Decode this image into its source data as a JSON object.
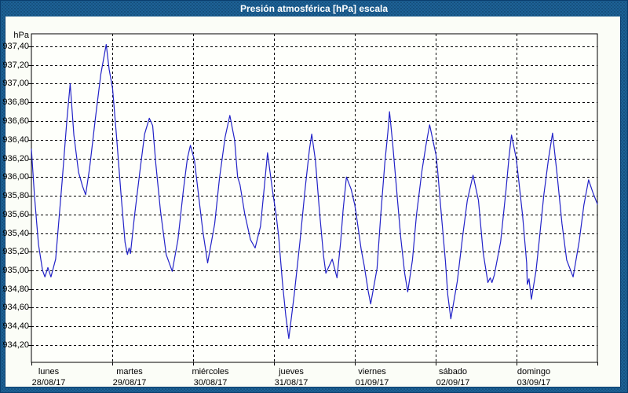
{
  "window": {
    "title": "Presión atmosférica [hPa] escala"
  },
  "colors": {
    "title_bar": "#1D6296",
    "window_border": "#0A3E6E",
    "panel_bg": "#FBFDF7",
    "plot_bg": "#FEFFFB",
    "grid": "#000000",
    "axis_text": "#000000",
    "line": "#2222C8"
  },
  "y_axis": {
    "unit_label": "hPa",
    "step": 0.2,
    "min": 934.2,
    "max": 937.4,
    "tick_labels": [
      "937,40",
      "937,20",
      "937,00",
      "936,80",
      "936,60",
      "936,40",
      "936,20",
      "936,00",
      "935,80",
      "935,60",
      "935,40",
      "935,20",
      "935,00",
      "934,80",
      "934,60",
      "934,40",
      "934,20"
    ]
  },
  "x_axis": {
    "days": [
      {
        "name": "lunes",
        "date": "28/08/17"
      },
      {
        "name": "martes",
        "date": "29/08/17"
      },
      {
        "name": "miércoles",
        "date": "30/08/17"
      },
      {
        "name": "jueves",
        "date": "31/08/17"
      },
      {
        "name": "viernes",
        "date": "01/09/17"
      },
      {
        "name": "sábado",
        "date": "02/09/17"
      },
      {
        "name": "domingo",
        "date": "03/09/17"
      }
    ]
  },
  "chart_data": {
    "type": "line",
    "title": "Presión atmosférica [hPa] escala",
    "xlabel": "",
    "ylabel": "hPa",
    "x_unit": "hours since lunes 28/08/17 00:00",
    "x_range": [
      0,
      168
    ],
    "ylim": [
      934.2,
      937.4
    ],
    "grid": "dashed",
    "legend": "none",
    "series": [
      {
        "name": "Presión atmosférica [hPa]",
        "color": "#2222C8",
        "points": [
          [
            0,
            936.3
          ],
          [
            0.9,
            935.8
          ],
          [
            2.1,
            935.28
          ],
          [
            3.3,
            935.0
          ],
          [
            4.0,
            934.93
          ],
          [
            4.9,
            935.03
          ],
          [
            5.8,
            934.93
          ],
          [
            7.2,
            935.12
          ],
          [
            9.1,
            935.95
          ],
          [
            10.5,
            936.6
          ],
          [
            11.5,
            937.0
          ],
          [
            12.6,
            936.45
          ],
          [
            14.0,
            936.05
          ],
          [
            15.2,
            935.9
          ],
          [
            16.1,
            935.81
          ],
          [
            17.3,
            936.1
          ],
          [
            18.9,
            936.6
          ],
          [
            20.6,
            937.1
          ],
          [
            22.2,
            937.42
          ],
          [
            23.1,
            937.15
          ],
          [
            24.1,
            936.95
          ],
          [
            25.2,
            936.46
          ],
          [
            26.6,
            935.81
          ],
          [
            27.8,
            935.3
          ],
          [
            28.5,
            935.17
          ],
          [
            29.0,
            935.24
          ],
          [
            29.4,
            935.18
          ],
          [
            30.6,
            935.58
          ],
          [
            32.2,
            936.06
          ],
          [
            33.6,
            936.46
          ],
          [
            35.0,
            936.63
          ],
          [
            36.0,
            936.55
          ],
          [
            36.9,
            936.15
          ],
          [
            38.3,
            935.64
          ],
          [
            40.0,
            935.17
          ],
          [
            41.8,
            934.99
          ],
          [
            43.5,
            935.33
          ],
          [
            45.1,
            935.86
          ],
          [
            46.3,
            936.2
          ],
          [
            47.2,
            936.34
          ],
          [
            48.4,
            936.18
          ],
          [
            49.8,
            935.75
          ],
          [
            50.9,
            935.42
          ],
          [
            52.3,
            935.08
          ],
          [
            54.4,
            935.5
          ],
          [
            55.8,
            935.98
          ],
          [
            57.5,
            936.43
          ],
          [
            58.9,
            936.66
          ],
          [
            60.3,
            936.4
          ],
          [
            61.2,
            936.0
          ],
          [
            61.9,
            935.92
          ],
          [
            63.3,
            935.61
          ],
          [
            65.0,
            935.33
          ],
          [
            66.4,
            935.24
          ],
          [
            68.0,
            935.47
          ],
          [
            69.2,
            935.92
          ],
          [
            70.1,
            936.26
          ],
          [
            71.5,
            935.87
          ],
          [
            72.7,
            935.58
          ],
          [
            73.4,
            935.36
          ],
          [
            74.5,
            934.88
          ],
          [
            75.5,
            934.52
          ],
          [
            76.4,
            934.27
          ],
          [
            78.0,
            934.74
          ],
          [
            79.7,
            935.3
          ],
          [
            81.3,
            935.89
          ],
          [
            82.5,
            936.29
          ],
          [
            83.2,
            936.46
          ],
          [
            84.3,
            936.18
          ],
          [
            85.5,
            935.64
          ],
          [
            86.7,
            935.16
          ],
          [
            87.4,
            934.97
          ],
          [
            89.3,
            935.12
          ],
          [
            90.7,
            934.92
          ],
          [
            91.8,
            935.31
          ],
          [
            92.5,
            935.64
          ],
          [
            93.5,
            936.0
          ],
          [
            94.9,
            935.87
          ],
          [
            96.0,
            935.7
          ],
          [
            96.7,
            935.53
          ],
          [
            97.9,
            935.22
          ],
          [
            98.8,
            935.05
          ],
          [
            100.0,
            934.77
          ],
          [
            100.7,
            934.64
          ],
          [
            102.6,
            935.02
          ],
          [
            103.7,
            935.59
          ],
          [
            104.9,
            936.15
          ],
          [
            105.8,
            936.48
          ],
          [
            106.3,
            936.7
          ],
          [
            107.2,
            936.37
          ],
          [
            108.4,
            935.87
          ],
          [
            109.6,
            935.36
          ],
          [
            110.8,
            934.97
          ],
          [
            111.7,
            934.77
          ],
          [
            113.1,
            935.11
          ],
          [
            114.3,
            935.59
          ],
          [
            115.9,
            936.06
          ],
          [
            117.1,
            936.34
          ],
          [
            118.2,
            936.56
          ],
          [
            119.6,
            936.32
          ],
          [
            120.1,
            936.24
          ],
          [
            120.6,
            936.06
          ],
          [
            121.7,
            935.59
          ],
          [
            122.9,
            935.1
          ],
          [
            123.6,
            934.74
          ],
          [
            124.5,
            934.48
          ],
          [
            126.4,
            934.88
          ],
          [
            128.0,
            935.36
          ],
          [
            129.4,
            935.75
          ],
          [
            131.1,
            936.02
          ],
          [
            132.7,
            935.75
          ],
          [
            134.1,
            935.19
          ],
          [
            135.5,
            934.87
          ],
          [
            136.2,
            934.92
          ],
          [
            136.7,
            934.87
          ],
          [
            137.4,
            934.95
          ],
          [
            139.3,
            935.31
          ],
          [
            140.9,
            935.87
          ],
          [
            141.8,
            936.23
          ],
          [
            142.5,
            936.45
          ],
          [
            143.9,
            936.2
          ],
          [
            144.6,
            935.98
          ],
          [
            145.8,
            935.59
          ],
          [
            147.0,
            935.08
          ],
          [
            147.2,
            934.85
          ],
          [
            147.7,
            934.91
          ],
          [
            148.4,
            934.69
          ],
          [
            149.8,
            935.0
          ],
          [
            150.7,
            935.31
          ],
          [
            152.1,
            935.81
          ],
          [
            153.5,
            936.2
          ],
          [
            154.7,
            936.47
          ],
          [
            156.1,
            936.01
          ],
          [
            157.5,
            935.5
          ],
          [
            158.9,
            935.11
          ],
          [
            160.8,
            934.93
          ],
          [
            162.6,
            935.31
          ],
          [
            164.0,
            935.7
          ],
          [
            165.4,
            935.97
          ],
          [
            166.6,
            935.84
          ],
          [
            168.0,
            935.71
          ]
        ]
      }
    ]
  }
}
